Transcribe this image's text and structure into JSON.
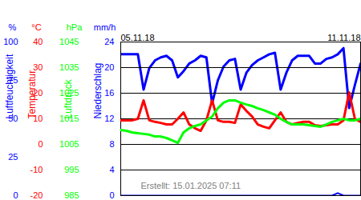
{
  "chart_data": [
    {
      "type": "line",
      "ylabel": "Luftfeuchtigkeit",
      "y_unit": "%",
      "color": "#0000ff",
      "caption": "Erstellt: 15.01.2025 07:11",
      "x": [
        0,
        4,
        8,
        12,
        16,
        20,
        24,
        28,
        32,
        36,
        40,
        44,
        48,
        52,
        56,
        60,
        64,
        68,
        72,
        76,
        80,
        84,
        88,
        92,
        96,
        100,
        104,
        108,
        112,
        116,
        120,
        124,
        128,
        132,
        136,
        140,
        144,
        148,
        152,
        156,
        160,
        164,
        168
      ],
      "values": [
        92,
        92,
        92,
        92,
        69,
        83,
        88,
        90,
        91,
        88,
        77,
        81,
        86,
        88,
        91,
        90,
        60,
        75,
        84,
        88,
        89,
        69,
        80,
        85,
        88,
        90,
        92,
        93,
        69,
        80,
        88,
        91,
        91,
        91,
        86,
        86,
        89,
        90,
        92,
        96,
        57,
        72,
        86
      ],
      "xlim": [
        0,
        168
      ],
      "xticks": [
        {
          "value": 0,
          "label": "05.11.18"
        },
        {
          "value": 168,
          "label": "11.11.18"
        }
      ],
      "ylim": [
        0,
        100
      ],
      "yticks": [
        0,
        25,
        50,
        75,
        100
      ]
    },
    {
      "type": "line",
      "ylabel": "Temperatur",
      "y_unit": "°C",
      "color": "#ff0000",
      "grid": true,
      "x": [
        0,
        4,
        8,
        12,
        16,
        20,
        24,
        28,
        32,
        36,
        40,
        44,
        48,
        52,
        56,
        60,
        64,
        68,
        72,
        76,
        80,
        84,
        88,
        92,
        96,
        100,
        104,
        108,
        112,
        116,
        120,
        124,
        128,
        132,
        136,
        140,
        144,
        148,
        152,
        156,
        160,
        164,
        168
      ],
      "values": [
        9.4,
        9.4,
        9.4,
        10,
        17.2,
        9.4,
        8.8,
        8.4,
        7.8,
        7.8,
        10,
        12.5,
        7.8,
        6.3,
        5.3,
        9.4,
        17.2,
        9.4,
        8.8,
        8.8,
        8.4,
        15.6,
        13.1,
        10.9,
        7.8,
        6.9,
        6.3,
        9.4,
        12.5,
        8.8,
        7.8,
        8.4,
        8.8,
        8.8,
        7.5,
        7.2,
        7.5,
        7.8,
        7.8,
        9.4,
        20.3,
        10,
        8.8
      ],
      "xlim": [
        0,
        168
      ],
      "ylim": [
        -20,
        40
      ],
      "yticks": [
        -20,
        -10,
        0,
        10,
        20,
        30,
        40
      ]
    },
    {
      "type": "line",
      "ylabel": "Luftdruck",
      "y_unit": "hPa",
      "color": "#00ff00",
      "x": [
        0,
        4,
        8,
        12,
        16,
        20,
        24,
        28,
        32,
        36,
        40,
        44,
        48,
        52,
        56,
        60,
        64,
        68,
        72,
        76,
        80,
        84,
        88,
        92,
        96,
        100,
        104,
        108,
        112,
        116,
        120,
        124,
        128,
        132,
        136,
        140,
        144,
        148,
        152,
        156,
        160,
        164,
        168
      ],
      "values": [
        1010.6,
        1010.3,
        1009.7,
        1009.4,
        1009.1,
        1008.8,
        1008.1,
        1008.1,
        1007.5,
        1006.6,
        1005.6,
        1009.7,
        1011.3,
        1012.2,
        1012.8,
        1014.4,
        1015.9,
        1019.1,
        1021.3,
        1022.2,
        1022.2,
        1021.3,
        1020.6,
        1020,
        1019.1,
        1018.4,
        1017.5,
        1016.6,
        1015,
        1013.8,
        1012.8,
        1012.8,
        1012.8,
        1012.5,
        1012.2,
        1011.9,
        1012.8,
        1013.8,
        1014.4,
        1015,
        1014.4,
        1014.4,
        1015
      ],
      "xlim": [
        0,
        168
      ],
      "ylim": [
        985,
        1045
      ],
      "yticks": [
        985,
        995,
        1005,
        1015,
        1025,
        1035,
        1045
      ]
    },
    {
      "type": "line",
      "ylabel": "Niederschlag",
      "y_unit": "mm/h",
      "color": "#0000ff",
      "x": [
        0,
        4,
        8,
        12,
        16,
        20,
        24,
        28,
        32,
        36,
        40,
        44,
        48,
        52,
        56,
        60,
        64,
        68,
        72,
        76,
        80,
        84,
        88,
        92,
        96,
        100,
        104,
        108,
        112,
        116,
        120,
        124,
        128,
        132,
        136,
        140,
        144,
        148,
        152,
        156,
        160,
        164,
        168
      ],
      "values": [
        0,
        0,
        0,
        0,
        0,
        0,
        0,
        0,
        0,
        0,
        0,
        0,
        0,
        0,
        0,
        0,
        0,
        0,
        0,
        0,
        0,
        0,
        0,
        0,
        0,
        0,
        0,
        0,
        0,
        0,
        0,
        0,
        0,
        0,
        0,
        0,
        0,
        0,
        0.4,
        0,
        0,
        0,
        0
      ],
      "xlim": [
        0,
        168
      ],
      "ylim": [
        0,
        24
      ],
      "yticks": [
        0,
        4,
        8,
        12,
        16,
        20,
        24
      ]
    }
  ]
}
